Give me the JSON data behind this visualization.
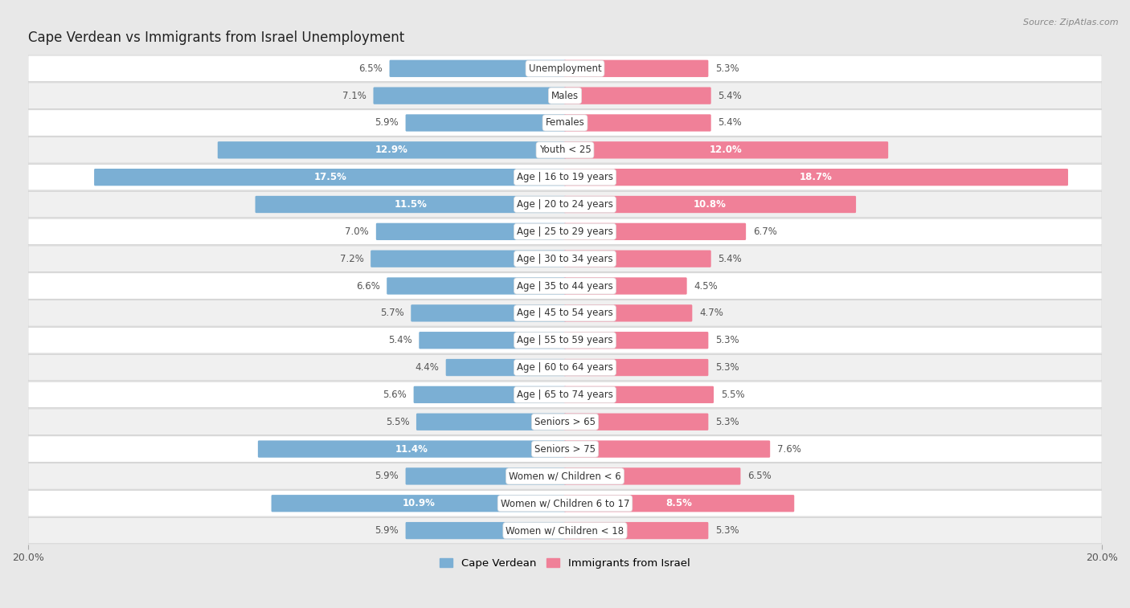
{
  "title": "Cape Verdean vs Immigrants from Israel Unemployment",
  "source": "Source: ZipAtlas.com",
  "categories": [
    "Unemployment",
    "Males",
    "Females",
    "Youth < 25",
    "Age | 16 to 19 years",
    "Age | 20 to 24 years",
    "Age | 25 to 29 years",
    "Age | 30 to 34 years",
    "Age | 35 to 44 years",
    "Age | 45 to 54 years",
    "Age | 55 to 59 years",
    "Age | 60 to 64 years",
    "Age | 65 to 74 years",
    "Seniors > 65",
    "Seniors > 75",
    "Women w/ Children < 6",
    "Women w/ Children 6 to 17",
    "Women w/ Children < 18"
  ],
  "cape_verdean": [
    6.5,
    7.1,
    5.9,
    12.9,
    17.5,
    11.5,
    7.0,
    7.2,
    6.6,
    5.7,
    5.4,
    4.4,
    5.6,
    5.5,
    11.4,
    5.9,
    10.9,
    5.9
  ],
  "israel": [
    5.3,
    5.4,
    5.4,
    12.0,
    18.7,
    10.8,
    6.7,
    5.4,
    4.5,
    4.7,
    5.3,
    5.3,
    5.5,
    5.3,
    7.6,
    6.5,
    8.5,
    5.3
  ],
  "cape_verdean_color": "#7bafd4",
  "israel_color": "#f08098",
  "background_color": "#e8e8e8",
  "row_bg_light": "#ffffff",
  "row_bg_dark": "#f0f0f0",
  "max_val": 20.0,
  "label_fontsize": 8.5,
  "title_fontsize": 12,
  "bar_height": 0.55
}
